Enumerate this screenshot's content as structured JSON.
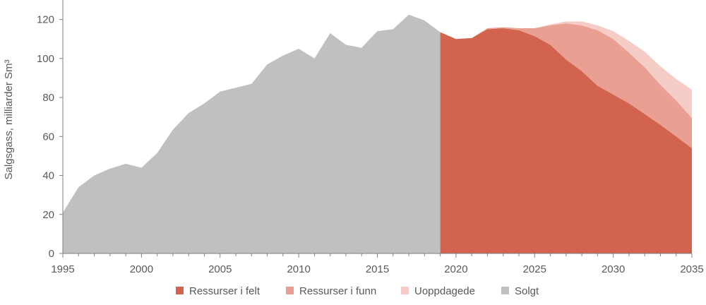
{
  "chart_data": {
    "type": "area",
    "ylabel": "Salgsgass, milliarder Sm³",
    "xlabel": "",
    "xlim": [
      1995,
      2035
    ],
    "ylim": [
      0,
      130
    ],
    "x_ticks": [
      1995,
      2000,
      2005,
      2010,
      2015,
      2020,
      2025,
      2030,
      2035
    ],
    "y_ticks": [
      0,
      20,
      40,
      60,
      80,
      100,
      120
    ],
    "grid": false,
    "legend_position": "bottom",
    "series": [
      {
        "name": "Solgt",
        "color": "#c0c0c0",
        "x": [
          1995,
          1996,
          1997,
          1998,
          1999,
          2000,
          2001,
          2002,
          2003,
          2004,
          2005,
          2006,
          2007,
          2008,
          2009,
          2010,
          2011,
          2012,
          2013,
          2014,
          2015,
          2016,
          2017,
          2018,
          2019
        ],
        "values": [
          21,
          34,
          40,
          43.5,
          46,
          44,
          51.5,
          63.5,
          72,
          77,
          83,
          85,
          87,
          97,
          101.5,
          105,
          100,
          113,
          107,
          105.5,
          114,
          115,
          122.5,
          119.5,
          113.5
        ]
      },
      {
        "name": "Ressurser i felt",
        "color": "#d2644f",
        "x": [
          2019,
          2020,
          2021,
          2022,
          2023,
          2024,
          2025,
          2026,
          2027,
          2028,
          2029,
          2030,
          2031,
          2032,
          2033,
          2034,
          2035
        ],
        "values": [
          113.5,
          110,
          110.5,
          115,
          115.5,
          114.5,
          111.5,
          107,
          99.5,
          93.5,
          86,
          81.5,
          77,
          71.5,
          66,
          60,
          54
        ]
      },
      {
        "name": "Ressurser i funn",
        "color": "#e99f91",
        "x": [
          2019,
          2020,
          2021,
          2022,
          2023,
          2024,
          2025,
          2026,
          2027,
          2028,
          2029,
          2030,
          2031,
          2032,
          2033,
          2034,
          2035
        ],
        "values": [
          0,
          0,
          0,
          0.5,
          0.5,
          1,
          4,
          10,
          18.5,
          23.5,
          28.5,
          28.5,
          26,
          24,
          20.5,
          18.5,
          15.5
        ]
      },
      {
        "name": "Uoppdagede",
        "color": "#f5cdc6",
        "x": [
          2019,
          2020,
          2021,
          2022,
          2023,
          2024,
          2025,
          2026,
          2027,
          2028,
          2029,
          2030,
          2031,
          2032,
          2033,
          2034,
          2035
        ],
        "values": [
          0,
          0,
          0,
          0,
          0,
          0,
          0,
          0.5,
          1,
          2,
          2.5,
          4,
          6,
          8,
          9.5,
          11,
          14.5
        ]
      }
    ],
    "legend": [
      {
        "label": "Ressurser i felt",
        "color": "#d2644f"
      },
      {
        "label": "Ressurser i funn",
        "color": "#e99f91"
      },
      {
        "label": "Uoppdagede",
        "color": "#f5cdc6"
      },
      {
        "label": "Solgt",
        "color": "#c0c0c0"
      }
    ]
  }
}
